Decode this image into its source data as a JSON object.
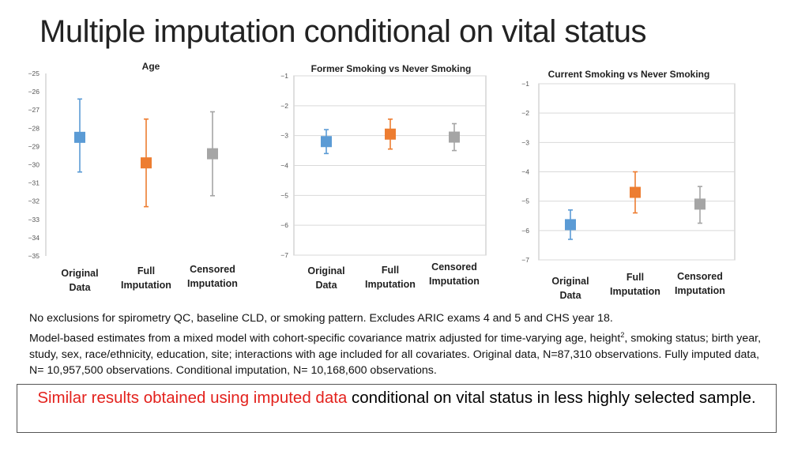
{
  "slide": {
    "title": "Multiple imputation conditional on vital status",
    "notes_line1": "No exclusions for spirometry QC, baseline CLD, or smoking pattern. Excludes ARIC exams 4 and 5 and CHS year 18.",
    "notes_line2_before": "Model-based estimates from a mixed model with cohort-specific covariance matrix adjusted for time-varying age, height",
    "notes_line2_sup": "2",
    "notes_line2_after": ", smoking status; birth year, study, sex, race/ethnicity, education, site; interactions with age included for all covariates. Original data, N=87,310 observations. Fully imputed data, N= 10,957,500 observations. Conditional imputation, N= 10,168,600 observations.",
    "conclusion_red": "Similar results obtained using imputed data",
    "conclusion_rest": " conditional on vital status in less highly selected sample."
  },
  "colors": {
    "original": "#5b9bd5",
    "full": "#ed7d31",
    "censored": "#a5a5a5",
    "conclusion_highlight": "#e3211c"
  },
  "chart_data": [
    {
      "type": "errorbar",
      "title": "Age",
      "ylim": [
        -35,
        -25
      ],
      "yticks": [
        -25,
        -26,
        -27,
        -28,
        -29,
        -30,
        -31,
        -32,
        -33,
        -34,
        -35
      ],
      "grid": false,
      "categories": [
        {
          "line1": "Original",
          "line2": "Data"
        },
        {
          "line1": "Full",
          "line2": "Imputation"
        },
        {
          "line1": "Censored",
          "line2": "Imputation"
        }
      ],
      "series": [
        {
          "estimate": -28.5,
          "lower": -30.4,
          "upper": -26.4
        },
        {
          "estimate": -29.9,
          "lower": -32.3,
          "upper": -27.5
        },
        {
          "estimate": -29.4,
          "lower": -31.7,
          "upper": -27.1
        }
      ]
    },
    {
      "type": "errorbar",
      "title": "Former Smoking vs Never Smoking",
      "ylim": [
        -7,
        -1
      ],
      "yticks": [
        -1,
        -2,
        -3,
        -4,
        -5,
        -6,
        -7
      ],
      "grid": true,
      "categories": [
        {
          "line1": "Original",
          "line2": "Data"
        },
        {
          "line1": "Full",
          "line2": "Imputation"
        },
        {
          "line1": "Censored",
          "line2": "Imputation"
        }
      ],
      "series": [
        {
          "estimate": -3.2,
          "lower": -3.6,
          "upper": -2.8
        },
        {
          "estimate": -2.95,
          "lower": -3.45,
          "upper": -2.45
        },
        {
          "estimate": -3.05,
          "lower": -3.5,
          "upper": -2.6
        }
      ]
    },
    {
      "type": "errorbar",
      "title": "Current Smoking vs Never Smoking",
      "ylim": [
        -7,
        -1
      ],
      "yticks": [
        -1,
        -2,
        -3,
        -4,
        -5,
        -6,
        -7
      ],
      "grid": true,
      "categories": [
        {
          "line1": "Original",
          "line2": "Data"
        },
        {
          "line1": "Full",
          "line2": "Imputation"
        },
        {
          "line1": "Censored",
          "line2": "Imputation"
        }
      ],
      "series": [
        {
          "estimate": -5.8,
          "lower": -6.3,
          "upper": -5.3
        },
        {
          "estimate": -4.7,
          "lower": -5.4,
          "upper": -4.0
        },
        {
          "estimate": -5.1,
          "lower": -5.75,
          "upper": -4.5
        }
      ]
    }
  ]
}
